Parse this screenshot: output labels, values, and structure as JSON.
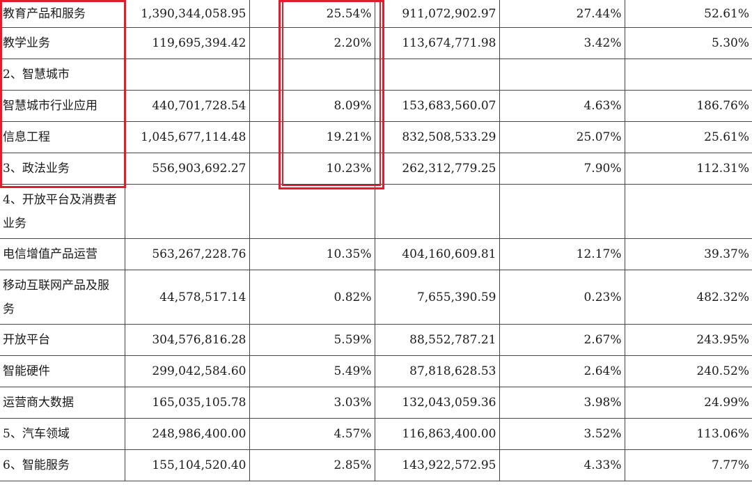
{
  "table": {
    "rows": [
      {
        "name": "教育产品和服务",
        "revenue": "1,390,344,058.95",
        "share": "25.54%",
        "prev_revenue": "911,072,902.97",
        "prev_share": "27.44%",
        "growth": "52.61%"
      },
      {
        "name": "教学业务",
        "revenue": "119,695,394.42",
        "share": "2.20%",
        "prev_revenue": "113,674,771.98",
        "prev_share": "3.42%",
        "growth": "5.30%"
      },
      {
        "name": "2、智慧城市",
        "revenue": "",
        "share": "",
        "prev_revenue": "",
        "prev_share": "",
        "growth": ""
      },
      {
        "name": "智慧城市行业应用",
        "revenue": "440,701,728.54",
        "share": "8.09%",
        "prev_revenue": "153,683,560.07",
        "prev_share": "4.63%",
        "growth": "186.76%"
      },
      {
        "name": "信息工程",
        "revenue": "1,045,677,114.48",
        "share": "19.21%",
        "prev_revenue": "832,508,533.29",
        "prev_share": "25.07%",
        "growth": "25.61%"
      },
      {
        "name": "3、政法业务",
        "revenue": "556,903,692.27",
        "share": "10.23%",
        "prev_revenue": "262,312,779.25",
        "prev_share": "7.90%",
        "growth": "112.31%"
      },
      {
        "name": "4、开放平台及消费者业务",
        "revenue": "",
        "share": "",
        "prev_revenue": "",
        "prev_share": "",
        "growth": ""
      },
      {
        "name": "电信增值产品运营",
        "revenue": "563,267,228.76",
        "share": "10.35%",
        "prev_revenue": "404,160,609.81",
        "prev_share": "12.17%",
        "growth": "39.37%"
      },
      {
        "name": "移动互联网产品及服务",
        "revenue": "44,578,517.14",
        "share": "0.82%",
        "prev_revenue": "7,655,390.59",
        "prev_share": "0.23%",
        "growth": "482.32%"
      },
      {
        "name": "开放平台",
        "revenue": "304,576,816.28",
        "share": "5.59%",
        "prev_revenue": "88,552,787.21",
        "prev_share": "2.67%",
        "growth": "243.95%"
      },
      {
        "name": "智能硬件",
        "revenue": "299,042,584.60",
        "share": "5.49%",
        "prev_revenue": "87,818,628.53",
        "prev_share": "2.64%",
        "growth": "240.52%"
      },
      {
        "name": "运营商大数据",
        "revenue": "165,035,105.78",
        "share": "3.03%",
        "prev_revenue": "132,043,059.36",
        "prev_share": "3.98%",
        "growth": "24.99%"
      },
      {
        "name": "5、汽车领域",
        "revenue": "248,986,400.00",
        "share": "4.57%",
        "prev_revenue": "116,863,400.00",
        "prev_share": "3.52%",
        "growth": "113.06%"
      },
      {
        "name": "6、智能服务",
        "revenue": "155,104,520.40",
        "share": "2.85%",
        "prev_revenue": "143,922,572.95",
        "prev_share": "4.33%",
        "growth": "7.77%"
      }
    ]
  },
  "highlight": {
    "color": "#e21c2a"
  }
}
